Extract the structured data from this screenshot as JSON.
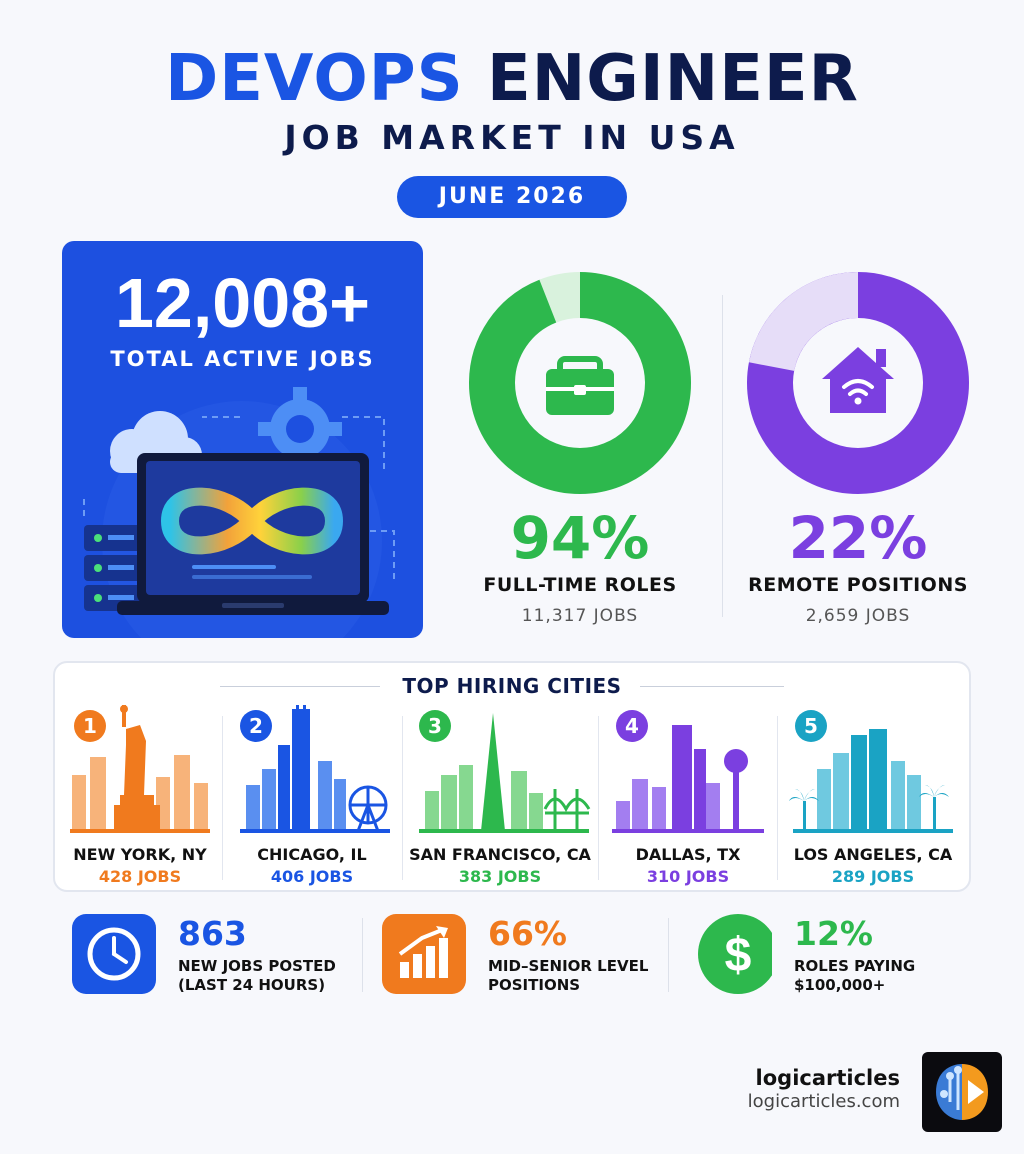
{
  "header": {
    "title_word1": "DEVOPS",
    "title_word2": "ENGINEER",
    "subtitle": "JOB MARKET IN USA",
    "date": "JUNE 2026"
  },
  "hero": {
    "total": "12,008+",
    "label": "TOTAL ACTIVE JOBS"
  },
  "metrics": [
    {
      "pct": "94%",
      "fraction": 0.94,
      "label": "FULL-TIME ROLES",
      "jobs": "11,317 JOBS",
      "color": "#2db84d",
      "icon": "briefcase-icon"
    },
    {
      "pct": "22%",
      "fraction": 0.22,
      "label": "REMOTE POSITIONS",
      "jobs": "2,659 JOBS",
      "color": "#7b3fe0",
      "icon": "home-wifi-icon"
    }
  ],
  "cities": {
    "title": "TOP HIRING CITIES",
    "items": [
      {
        "rank": "1",
        "name": "NEW YORK, NY",
        "jobs": "428 JOBS",
        "color": "#f07a1e"
      },
      {
        "rank": "2",
        "name": "CHICAGO, IL",
        "jobs": "406 JOBS",
        "color": "#1a55e3"
      },
      {
        "rank": "3",
        "name": "SAN FRANCISCO, CA",
        "jobs": "383 JOBS",
        "color": "#2db84d"
      },
      {
        "rank": "4",
        "name": "DALLAS, TX",
        "jobs": "310 JOBS",
        "color": "#7b3fe0"
      },
      {
        "rank": "5",
        "name": "LOS ANGELES, CA",
        "jobs": "289 JOBS",
        "color": "#1aa3c4"
      }
    ]
  },
  "stats": [
    {
      "value": "863",
      "desc": "NEW JOBS POSTED\n(LAST 24 HOURS)",
      "color": "#1a55e3",
      "icon": "clock-icon"
    },
    {
      "value": "66%",
      "desc": "MID–SENIOR LEVEL\nPOSITIONS",
      "color": "#f07a1e",
      "icon": "growth-chart-icon"
    },
    {
      "value": "12%",
      "desc": "ROLES PAYING\n$100,000+",
      "color": "#2db84d",
      "icon": "dollar-icon"
    }
  ],
  "brand": {
    "name": "logicarticles",
    "url": "logicarticles.com"
  }
}
